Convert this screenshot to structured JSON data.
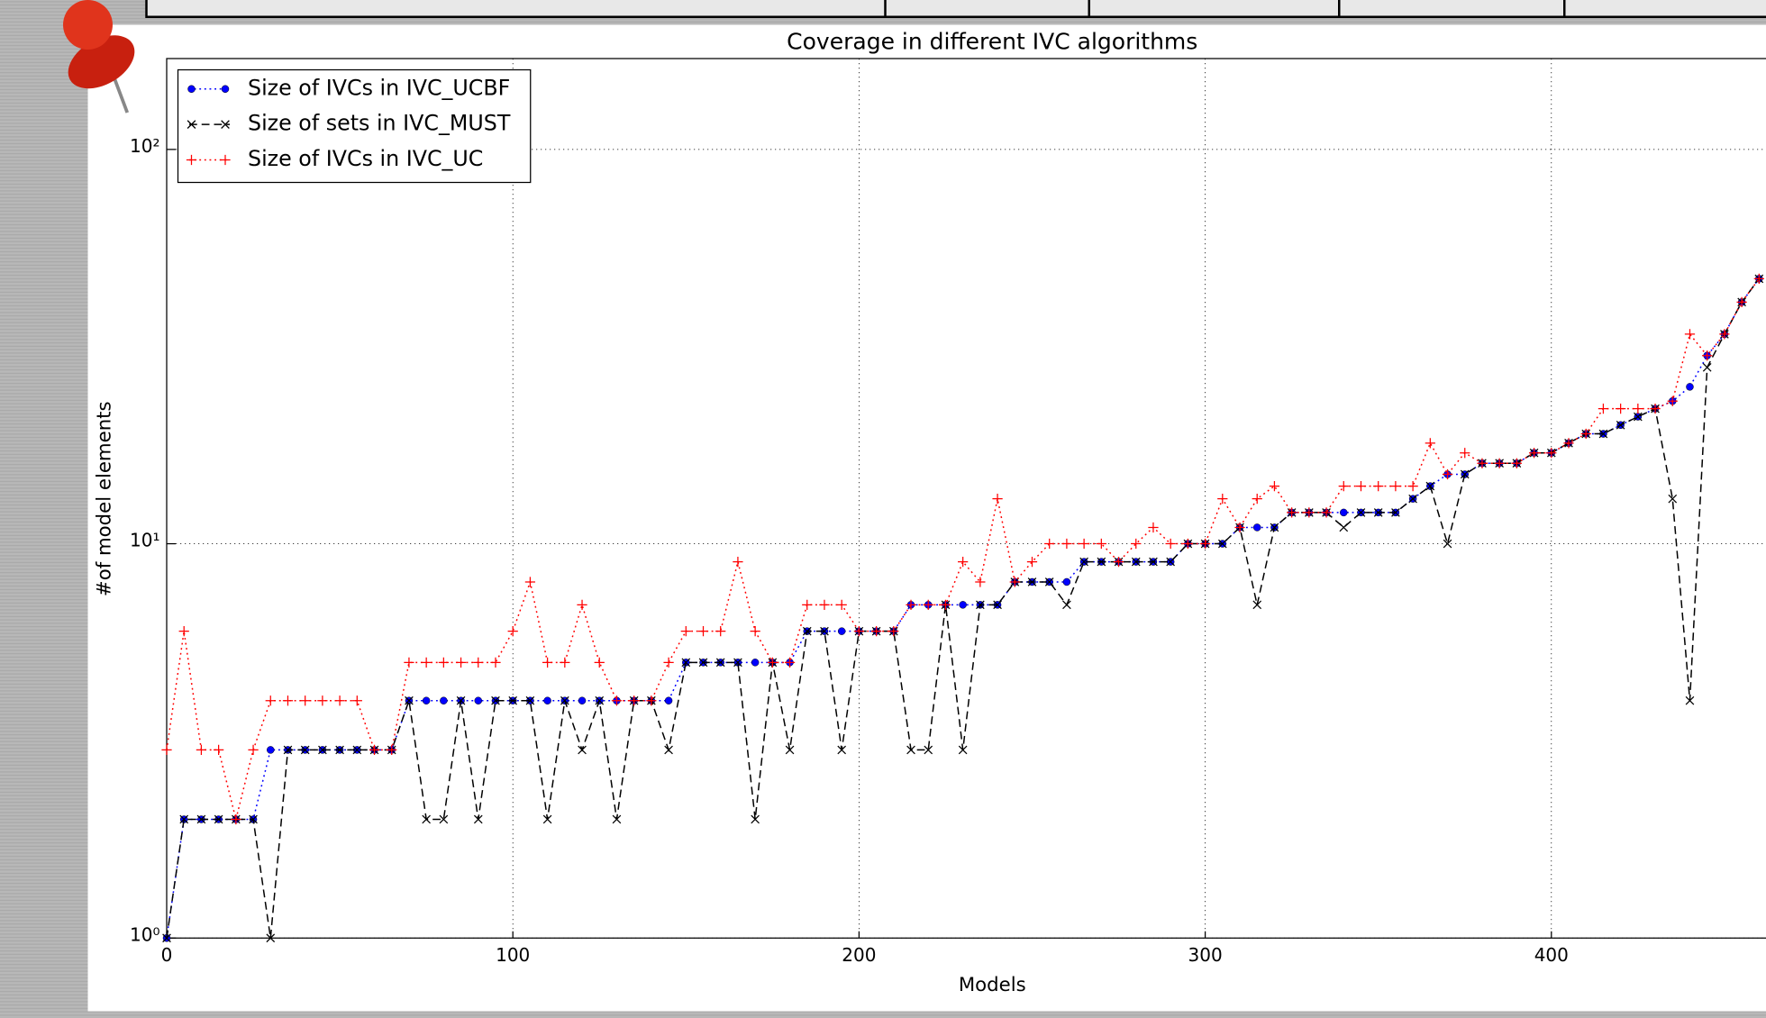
{
  "chart_data": {
    "type": "line",
    "title": "Coverage in different IVC algorithms",
    "x_label": "Models",
    "y_label": "#of model elements",
    "x": [
      0,
      5,
      10,
      15,
      20,
      25,
      30,
      35,
      40,
      45,
      50,
      55,
      60,
      65,
      70,
      75,
      80,
      85,
      90,
      95,
      100,
      105,
      110,
      115,
      120,
      125,
      130,
      135,
      140,
      145,
      150,
      155,
      160,
      165,
      170,
      175,
      180,
      185,
      190,
      195,
      200,
      205,
      210,
      215,
      220,
      225,
      230,
      235,
      240,
      245,
      250,
      255,
      260,
      265,
      270,
      275,
      280,
      285,
      290,
      295,
      300,
      305,
      310,
      315,
      320,
      325,
      330,
      335,
      340,
      345,
      350,
      355,
      360,
      365,
      370,
      375,
      380,
      385,
      390,
      395,
      400,
      405,
      410,
      415,
      420,
      425,
      430,
      435,
      440,
      445,
      450,
      455,
      460
    ],
    "series": [
      {
        "name": "Size of IVCs in IVC_UCBF",
        "color": "#0000ff",
        "marker": "circle",
        "dash": "dotted",
        "values": [
          1,
          2,
          2,
          2,
          2,
          2,
          3,
          3,
          3,
          3,
          3,
          3,
          3,
          3,
          4,
          4,
          4,
          4,
          4,
          4,
          4,
          4,
          4,
          4,
          4,
          4,
          4,
          4,
          4,
          4,
          5,
          5,
          5,
          5,
          5,
          5,
          5,
          6,
          6,
          6,
          6,
          6,
          6,
          7,
          7,
          7,
          7,
          7,
          7,
          8,
          8,
          8,
          8,
          9,
          9,
          9,
          9,
          9,
          9,
          10,
          10,
          10,
          11,
          11,
          11,
          12,
          12,
          12,
          12,
          12,
          12,
          12,
          13,
          14,
          15,
          15,
          16,
          16,
          16,
          17,
          17,
          18,
          19,
          19,
          20,
          21,
          22,
          23,
          25,
          30,
          34,
          41,
          47
        ]
      },
      {
        "name": "Size of sets in IVC_MUST",
        "color": "#000000",
        "marker": "x",
        "dash": "dashed",
        "values": [
          1,
          2,
          2,
          2,
          2,
          2,
          1,
          3,
          3,
          3,
          3,
          3,
          3,
          3,
          4,
          2,
          2,
          4,
          2,
          4,
          4,
          4,
          2,
          4,
          3,
          4,
          2,
          4,
          4,
          3,
          5,
          5,
          5,
          5,
          2,
          5,
          3,
          6,
          6,
          3,
          6,
          6,
          6,
          3,
          3,
          7,
          3,
          7,
          7,
          8,
          8,
          8,
          7,
          9,
          9,
          9,
          9,
          9,
          9,
          10,
          10,
          10,
          11,
          7,
          11,
          12,
          12,
          12,
          11,
          12,
          12,
          12,
          13,
          14,
          10,
          15,
          16,
          16,
          16,
          17,
          17,
          18,
          19,
          19,
          20,
          21,
          22,
          13,
          4,
          28,
          34,
          41,
          47
        ]
      },
      {
        "name": "Size of IVCs in IVC_UC",
        "color": "#ff0000",
        "marker": "plus",
        "dash": "dotted",
        "values": [
          3,
          6,
          3,
          3,
          2,
          3,
          4,
          4,
          4,
          4,
          4,
          4,
          3,
          3,
          5,
          5,
          5,
          5,
          5,
          5,
          6,
          8,
          5,
          5,
          7,
          5,
          4,
          4,
          4,
          5,
          6,
          6,
          6,
          9,
          6,
          5,
          5,
          7,
          7,
          7,
          6,
          6,
          6,
          7,
          7,
          7,
          9,
          8,
          13,
          8,
          9,
          10,
          10,
          10,
          10,
          9,
          10,
          11,
          10,
          10,
          10,
          13,
          11,
          13,
          14,
          12,
          12,
          12,
          14,
          14,
          14,
          14,
          14,
          18,
          15,
          17,
          16,
          16,
          16,
          17,
          17,
          18,
          19,
          22,
          22,
          22,
          22,
          23,
          34,
          30,
          34,
          41,
          47
        ]
      }
    ],
    "xlim": [
      0,
      462
    ],
    "xticks": [
      0,
      100,
      200,
      300,
      400
    ],
    "ylim": [
      1,
      170
    ],
    "log_y": true,
    "yticks": [
      {
        "value": 1,
        "label": "10⁰"
      },
      {
        "value": 10,
        "label": "10¹"
      },
      {
        "value": 100,
        "label": "10²"
      }
    ],
    "grid": true,
    "legend": "upper-left"
  }
}
